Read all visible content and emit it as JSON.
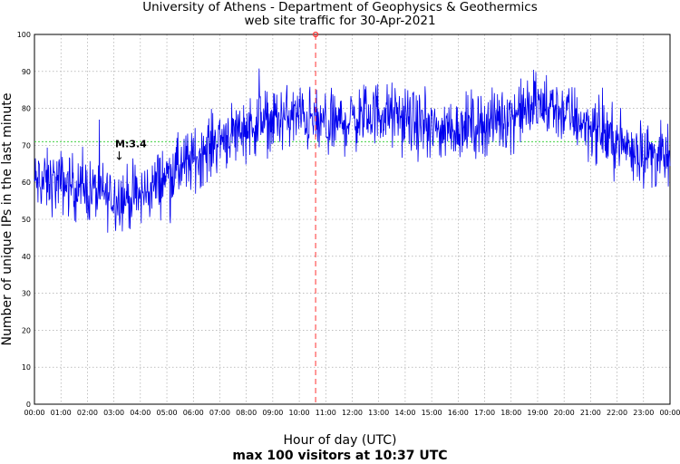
{
  "title_line1": "University of Athens - Department of Geophysics & Geothermics",
  "title_line2": "web site traffic for 30-Apr-2021",
  "footnote": "max 100 visitors at 10:37 UTC",
  "chart_data": {
    "type": "line",
    "xlabel": "Hour of day (UTC)",
    "ylabel": "Number of unique IPs in the last minute",
    "xticks": [
      "00:00",
      "01:00",
      "02:00",
      "03:00",
      "04:00",
      "05:00",
      "06:00",
      "07:00",
      "08:00",
      "09:00",
      "10:00",
      "11:00",
      "12:00",
      "13:00",
      "14:00",
      "15:00",
      "16:00",
      "17:00",
      "18:00",
      "19:00",
      "20:00",
      "21:00",
      "22:00",
      "23:00",
      "00:00"
    ],
    "yticks": [
      0,
      10,
      20,
      30,
      40,
      50,
      60,
      70,
      80,
      90,
      100
    ],
    "xlim_hours": [
      0,
      24
    ],
    "ylim": [
      0,
      100
    ],
    "grid": true,
    "series_color": "#0000ee",
    "trend_hourly": [
      {
        "hour": 0.0,
        "value": 60
      },
      {
        "hour": 1.0,
        "value": 60
      },
      {
        "hour": 2.0,
        "value": 58
      },
      {
        "hour": 3.0,
        "value": 56
      },
      {
        "hour": 4.0,
        "value": 56
      },
      {
        "hour": 5.0,
        "value": 62
      },
      {
        "hour": 6.0,
        "value": 66
      },
      {
        "hour": 7.0,
        "value": 72
      },
      {
        "hour": 8.0,
        "value": 75
      },
      {
        "hour": 9.0,
        "value": 77
      },
      {
        "hour": 10.0,
        "value": 78
      },
      {
        "hour": 11.0,
        "value": 75
      },
      {
        "hour": 12.0,
        "value": 77
      },
      {
        "hour": 13.0,
        "value": 79
      },
      {
        "hour": 14.0,
        "value": 77
      },
      {
        "hour": 15.0,
        "value": 74
      },
      {
        "hour": 16.0,
        "value": 75
      },
      {
        "hour": 17.0,
        "value": 76
      },
      {
        "hour": 18.0,
        "value": 78
      },
      {
        "hour": 19.0,
        "value": 81
      },
      {
        "hour": 20.0,
        "value": 79
      },
      {
        "hour": 21.0,
        "value": 75
      },
      {
        "hour": 22.0,
        "value": 71
      },
      {
        "hour": 23.0,
        "value": 68
      },
      {
        "hour": 24.0,
        "value": 66
      }
    ],
    "noise_amplitude": 6,
    "reference_line": {
      "value": 71,
      "color": "#22cc22"
    },
    "max_marker": {
      "time": "10:37",
      "hour": 10.6167,
      "value": 100,
      "color": "#ff3333"
    },
    "annotation": {
      "text": "M:3.4",
      "hour": 3.15,
      "value": 67
    }
  }
}
